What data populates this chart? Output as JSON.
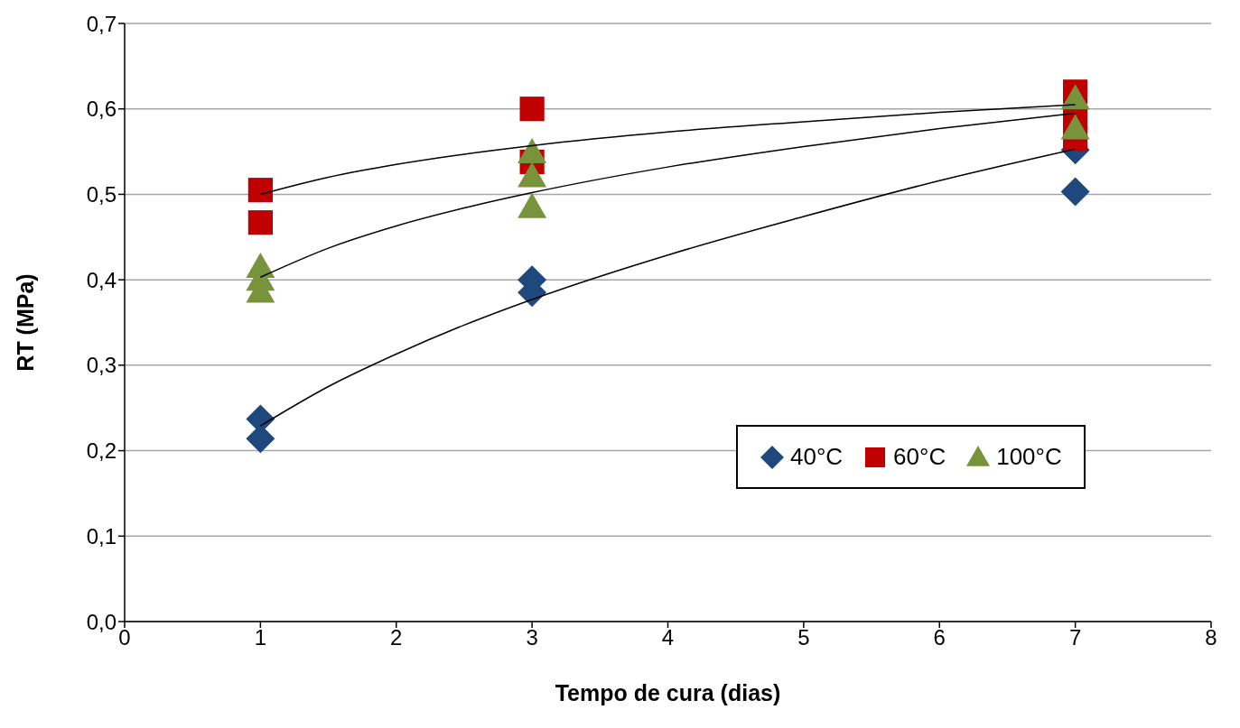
{
  "chart_data": {
    "type": "scatter",
    "xlabel": "Tempo de cura (dias)",
    "ylabel": "RT (MPa)",
    "xlim": [
      0,
      8
    ],
    "xticks": [
      0,
      1,
      2,
      3,
      4,
      5,
      6,
      7,
      8
    ],
    "ylim": [
      0,
      0.7
    ],
    "yticks": [
      {
        "value": 0,
        "label": "0,0"
      },
      {
        "value": 0.1,
        "label": "0,1"
      },
      {
        "value": 0.2,
        "label": "0,2"
      },
      {
        "value": 0.3,
        "label": "0,3"
      },
      {
        "value": 0.4,
        "label": "0,4"
      },
      {
        "value": 0.5,
        "label": "0,5"
      },
      {
        "value": 0.6,
        "label": "0,6"
      },
      {
        "value": 0.7,
        "label": "0,7"
      }
    ],
    "grid": "y",
    "legend": "bottom right",
    "series": [
      {
        "name": "40°C",
        "color": "#1f497d",
        "marker": "diamond",
        "x": [
          1,
          1,
          3,
          3,
          7,
          7
        ],
        "values": [
          0.237,
          0.214,
          0.4,
          0.385,
          0.552,
          0.503
        ]
      },
      {
        "name": "60°C",
        "color": "#c00000",
        "marker": "square",
        "x": [
          1,
          1,
          3,
          3,
          7,
          7,
          7
        ],
        "values": [
          0.505,
          0.467,
          0.6,
          0.538,
          0.62,
          0.59,
          0.565
        ]
      },
      {
        "name": "100°C",
        "color": "#77933c",
        "marker": "triangle",
        "x": [
          1,
          1,
          1,
          3,
          3,
          3,
          7,
          7
        ],
        "values": [
          0.415,
          0.4,
          0.386,
          0.549,
          0.521,
          0.485,
          0.612,
          0.577
        ]
      },
      {
        "type": "line",
        "color": "#000000",
        "marker": "none",
        "x": [
          1,
          1.5,
          2,
          2.5,
          3,
          4,
          5,
          6,
          7
        ],
        "values": [
          0.229,
          0.275,
          0.313,
          0.347,
          0.377,
          0.429,
          0.474,
          0.516,
          0.553
        ]
      },
      {
        "type": "line",
        "color": "#000000",
        "marker": "none",
        "x": [
          1,
          1.5,
          2,
          2.5,
          3,
          4,
          5,
          6,
          7
        ],
        "values": [
          0.5,
          0.52,
          0.535,
          0.547,
          0.557,
          0.573,
          0.585,
          0.596,
          0.605
        ]
      },
      {
        "type": "line",
        "color": "#000000",
        "marker": "none",
        "x": [
          1,
          1.5,
          2,
          2.5,
          3,
          4,
          5,
          6,
          7
        ],
        "values": [
          0.403,
          0.437,
          0.463,
          0.484,
          0.502,
          0.532,
          0.556,
          0.577,
          0.595
        ]
      }
    ]
  }
}
